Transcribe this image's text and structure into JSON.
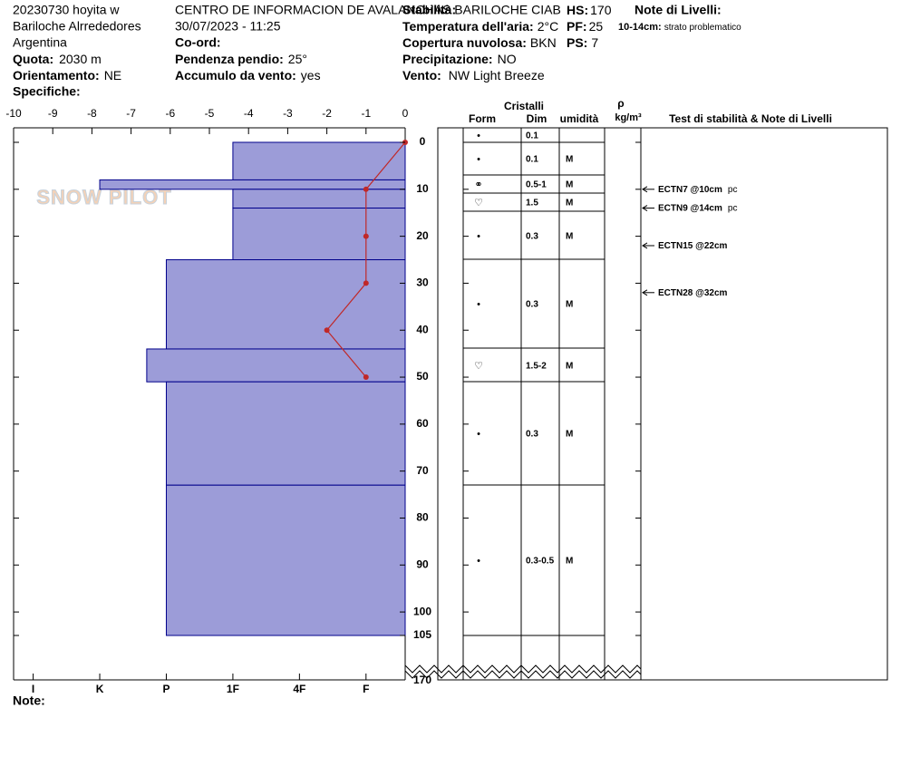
{
  "header": {
    "lines": [
      "20230730 hoyita w",
      "Bariloche Alrrededores",
      "Argentina"
    ],
    "quota": {
      "label": "Quota:",
      "value": "2030 m"
    },
    "orientamento": {
      "label": "Orientamento:",
      "value": "NE"
    },
    "specifiche": {
      "label": "Specifiche:"
    },
    "center": "CENTRO DE INFORMACION DE AVALANCHAS BARILOCHE CIAB",
    "datetime": "30/07/2023 - 11:25",
    "coord": {
      "label": "Co-ord:"
    },
    "pendenza": {
      "label": "Pendenza pendio:",
      "value": "25°"
    },
    "accumulo": {
      "label": "Accumulo da vento:",
      "value": "yes"
    },
    "stabilita": {
      "label": "Stabilità:"
    },
    "temperatura": {
      "label": "Temperatura dell'aria:",
      "value": "2°C"
    },
    "copertura": {
      "label": "Copertura nuvolosa:",
      "value": "BKN"
    },
    "precipitazione": {
      "label": "Precipitazione:",
      "value": "NO"
    },
    "vento": {
      "label": "Vento:",
      "value": "NW Light Breeze"
    },
    "hs": {
      "label": "HS:",
      "value": "170"
    },
    "pf": {
      "label": "PF:",
      "value": "25"
    },
    "ps": {
      "label": "PS:",
      "value": "7"
    },
    "note_livelli": {
      "label": "Note di Livelli:"
    },
    "note_item": {
      "label": "10-14cm:",
      "value": "strato problematico"
    },
    "logo": "SNOW PILOT",
    "note": "Note:"
  },
  "chart_data": {
    "type": "snow-profile",
    "xlim": [
      -10,
      0
    ],
    "xticks": [
      -10,
      -9,
      -8,
      -7,
      -6,
      -5,
      -4,
      -3,
      -2,
      -1,
      0
    ],
    "ylim": [
      0,
      105
    ],
    "yticks": [
      0,
      10,
      20,
      30,
      40,
      50,
      60,
      70,
      80,
      90,
      100,
      105
    ],
    "depth_break_label": 170,
    "hardness_ticks": [
      {
        "value": -9.5,
        "label": "I"
      },
      {
        "value": -7.8,
        "label": "K"
      },
      {
        "value": -6.1,
        "label": "P"
      },
      {
        "value": -4.4,
        "label": "1F"
      },
      {
        "value": -2.7,
        "label": "4F"
      },
      {
        "value": -1,
        "label": "F"
      }
    ],
    "layers": {
      "color": "#9c9cd8",
      "top": [
        0,
        8,
        10,
        14,
        25,
        44,
        51,
        73
      ],
      "bottom": [
        8,
        10,
        14,
        25,
        44,
        51,
        73,
        105
      ],
      "hardness": [
        -4.4,
        -7.8,
        -4.4,
        -4.4,
        -6.1,
        -6.6,
        -6.1,
        -6.1
      ]
    },
    "temperature": {
      "color": "#c02828",
      "depth": [
        0,
        10,
        20,
        30,
        40,
        50
      ],
      "values": [
        0,
        -1,
        -1,
        -1,
        -2,
        -1
      ]
    }
  },
  "table": {
    "title": "Cristalli",
    "columns": [
      "Form",
      "Dim",
      "umidità"
    ],
    "density": {
      "symbol": "ρ",
      "unit": "kg/m³"
    },
    "tests_title": "Test di stabilità & Note di Livelli",
    "rows": [
      [
        "•",
        "0.1",
        null
      ],
      [
        "•",
        "0.1",
        "M"
      ],
      [
        "⚭",
        "0.5-1",
        "M"
      ],
      [
        "♡",
        "1.5",
        "M"
      ],
      [
        "•",
        "0.3",
        "M"
      ],
      [
        "•",
        "0.3",
        "M"
      ],
      [
        "♡",
        "1.5-2",
        "M"
      ],
      [
        "•",
        "0.3",
        "M"
      ],
      [
        "•",
        "0.3-0.5",
        "M"
      ]
    ],
    "tests": [
      {
        "label": "ECTN7 @10cm",
        "note": "pc",
        "depth": 10
      },
      {
        "label": "ECTN9 @14cm",
        "note": "pc",
        "depth": 14
      },
      {
        "label": "ECTN15 @22cm",
        "depth": 22
      },
      {
        "label": "ECTN28 @32cm",
        "depth": 32
      }
    ]
  }
}
